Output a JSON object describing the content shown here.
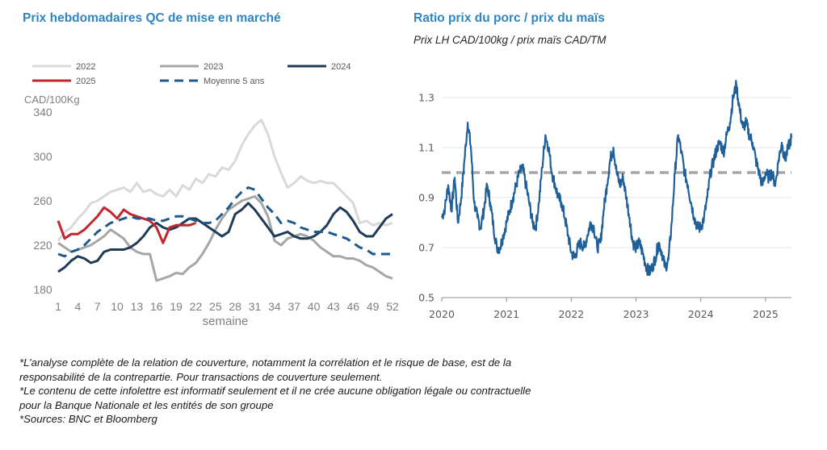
{
  "left_title": "Prix hebdomadaires QC de mise en marché",
  "right_title": "Ratio prix du porc / prix du maïs",
  "right_subtitle": "Prix LH CAD/100kg  /  prix maïs CAD/TM",
  "footnotes": [
    "*L’analyse complète de la relation de couverture, notamment la corrélation et le risque de base, est de la",
    "responsabilité de la contrepartie. Pour transactions de couverture seulement.",
    "*Le contenu de cette infolettre est informatif seulement et il ne crée aucune obligation légale ou contractuelle",
    "pour la Banque Nationale et les entités de son groupe",
    "*Sources: BNC et Bloomberg"
  ],
  "chart_data": [
    {
      "type": "line",
      "title": "Prix hebdomadaires QC de mise en marché",
      "ylabel": "CAD/100Kg",
      "xlabel": "semaine",
      "ylim": [
        180,
        340
      ],
      "yticks": [
        180,
        220,
        260,
        300,
        340
      ],
      "xlim": [
        1,
        52
      ],
      "xticks": [
        1,
        4,
        7,
        10,
        13,
        16,
        19,
        22,
        25,
        28,
        31,
        34,
        37,
        40,
        43,
        46,
        49,
        52
      ],
      "legend_position": "top",
      "series": [
        {
          "name": "2022",
          "color": "#d9d9d9",
          "dash": false,
          "values": [
            224,
            232,
            236,
            244,
            250,
            258,
            260,
            264,
            268,
            270,
            272,
            268,
            276,
            268,
            270,
            266,
            264,
            270,
            264,
            274,
            270,
            280,
            276,
            284,
            282,
            290,
            288,
            296,
            310,
            320,
            328,
            333,
            320,
            300,
            285,
            272,
            276,
            282,
            278,
            276,
            278,
            276,
            276,
            270,
            264,
            258,
            240,
            242,
            238,
            240,
            238,
            240
          ]
        },
        {
          "name": "2023",
          "color": "#a6a6a6",
          "dash": false,
          "values": [
            222,
            218,
            214,
            216,
            218,
            220,
            224,
            228,
            234,
            230,
            226,
            218,
            214,
            212,
            212,
            188,
            190,
            192,
            195,
            194,
            200,
            204,
            212,
            222,
            234,
            244,
            252,
            256,
            260,
            262,
            264,
            258,
            246,
            224,
            220,
            226,
            228,
            230,
            228,
            224,
            218,
            214,
            210,
            210,
            208,
            208,
            206,
            202,
            200,
            196,
            192,
            190
          ]
        },
        {
          "name": "2024",
          "color": "#1f3b57",
          "dash": false,
          "values": [
            196,
            200,
            206,
            210,
            208,
            204,
            206,
            214,
            216,
            216,
            216,
            218,
            222,
            228,
            236,
            240,
            236,
            234,
            236,
            240,
            244,
            244,
            240,
            236,
            232,
            228,
            232,
            248,
            252,
            258,
            252,
            244,
            236,
            228,
            230,
            232,
            228,
            226,
            226,
            228,
            232,
            238,
            248,
            254,
            250,
            242,
            232,
            228,
            228,
            236,
            244,
            248
          ]
        },
        {
          "name": "2025",
          "color": "#c0282d",
          "dash": false,
          "values": [
            242,
            226,
            230,
            230,
            234,
            240,
            246,
            254,
            250,
            244,
            252,
            248,
            246,
            244,
            242,
            236,
            222,
            236,
            238,
            238,
            238,
            240
          ]
        },
        {
          "name": "Moyenne 5 ans",
          "color": "#1f5a8a",
          "dash": true,
          "values": [
            212,
            210,
            214,
            216,
            220,
            226,
            232,
            236,
            240,
            242,
            244,
            246,
            244,
            244,
            244,
            242,
            242,
            244,
            246,
            246,
            244,
            242,
            240,
            240,
            242,
            248,
            254,
            262,
            268,
            272,
            270,
            262,
            254,
            248,
            240,
            242,
            240,
            236,
            234,
            232,
            232,
            232,
            230,
            228,
            226,
            222,
            218,
            216,
            212,
            212,
            212,
            212
          ]
        }
      ]
    },
    {
      "type": "line",
      "title": "Ratio prix du porc / prix du maïs",
      "subtitle": "Prix LH CAD/100kg  /  prix maïs CAD/TM",
      "ylim": [
        0.5,
        1.4
      ],
      "yticks": [
        0.5,
        0.7,
        0.9,
        1.1,
        1.3
      ],
      "xticks": [
        "2020",
        "2021",
        "2022",
        "2023",
        "2024",
        "2025"
      ],
      "xlim": [
        2020.0,
        2025.4
      ],
      "reference_line": {
        "value": 1.0,
        "color": "#a6a6a6",
        "dash": true
      },
      "series": [
        {
          "color": "#1f5f9a",
          "x": [
            2020.0,
            2020.05,
            2020.1,
            2020.15,
            2020.2,
            2020.25,
            2020.3,
            2020.35,
            2020.4,
            2020.45,
            2020.5,
            2020.55,
            2020.6,
            2020.65,
            2020.7,
            2020.75,
            2020.8,
            2020.85,
            2020.9,
            2020.95,
            2021.0,
            2021.05,
            2021.1,
            2021.15,
            2021.2,
            2021.25,
            2021.3,
            2021.35,
            2021.4,
            2021.45,
            2021.5,
            2021.55,
            2021.6,
            2021.65,
            2021.7,
            2021.75,
            2021.8,
            2021.85,
            2021.9,
            2021.95,
            2022.0,
            2022.05,
            2022.1,
            2022.15,
            2022.2,
            2022.25,
            2022.3,
            2022.35,
            2022.4,
            2022.45,
            2022.5,
            2022.55,
            2022.6,
            2022.65,
            2022.7,
            2022.75,
            2022.8,
            2022.85,
            2022.9,
            2022.95,
            2023.0,
            2023.05,
            2023.1,
            2023.15,
            2023.2,
            2023.25,
            2023.3,
            2023.35,
            2023.4,
            2023.45,
            2023.5,
            2023.55,
            2023.6,
            2023.65,
            2023.7,
            2023.75,
            2023.8,
            2023.85,
            2023.9,
            2023.95,
            2024.0,
            2024.05,
            2024.1,
            2024.15,
            2024.2,
            2024.25,
            2024.3,
            2024.35,
            2024.4,
            2024.45,
            2024.5,
            2024.55,
            2024.6,
            2024.65,
            2024.7,
            2024.75,
            2024.8,
            2024.85,
            2024.9,
            2024.95,
            2025.0,
            2025.05,
            2025.1,
            2025.15,
            2025.2,
            2025.25,
            2025.3,
            2025.35,
            2025.4
          ],
          "values": [
            0.82,
            0.86,
            0.95,
            0.85,
            0.98,
            0.8,
            0.9,
            1.05,
            1.2,
            1.1,
            0.88,
            0.82,
            0.78,
            0.85,
            0.95,
            0.88,
            0.78,
            0.7,
            0.7,
            0.75,
            0.8,
            0.85,
            0.9,
            0.95,
            1.0,
            1.02,
            0.95,
            0.88,
            0.8,
            0.78,
            0.88,
            1.02,
            1.15,
            1.1,
            1.0,
            0.95,
            0.9,
            0.88,
            0.82,
            0.75,
            0.68,
            0.66,
            0.7,
            0.72,
            0.7,
            0.75,
            0.8,
            0.78,
            0.7,
            0.72,
            0.85,
            0.95,
            1.05,
            1.1,
            1.0,
            0.95,
            0.98,
            0.9,
            0.82,
            0.72,
            0.7,
            0.72,
            0.68,
            0.63,
            0.6,
            0.62,
            0.66,
            0.72,
            0.68,
            0.62,
            0.65,
            0.8,
            1.0,
            1.15,
            1.08,
            1.0,
            0.95,
            0.88,
            0.82,
            0.78,
            0.78,
            0.82,
            0.9,
            1.0,
            1.05,
            1.1,
            1.12,
            1.08,
            1.15,
            1.2,
            1.3,
            1.35,
            1.25,
            1.18,
            1.2,
            1.15,
            1.12,
            1.05,
            1.0,
            0.95,
            1.0,
            0.98,
            1.0,
            0.95,
            1.05,
            1.12,
            1.05,
            1.1,
            1.14
          ]
        }
      ]
    }
  ]
}
